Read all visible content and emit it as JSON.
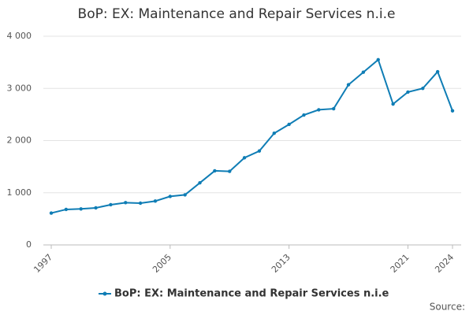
{
  "chart_data": {
    "type": "line",
    "title": "BoP: EX: Maintenance and Repair Services n.i.e",
    "x": [
      1997,
      1998,
      1999,
      2000,
      2001,
      2002,
      2003,
      2004,
      2005,
      2006,
      2007,
      2008,
      2009,
      2010,
      2011,
      2012,
      2013,
      2014,
      2015,
      2016,
      2017,
      2018,
      2019,
      2020,
      2021,
      2022,
      2023,
      2024
    ],
    "series": [
      {
        "name": "BoP: EX: Maintenance and Repair Services n.i.e",
        "color": "#0f7db5",
        "values": [
          610,
          680,
          690,
          710,
          770,
          810,
          800,
          840,
          930,
          960,
          1190,
          1420,
          1410,
          1670,
          1800,
          2140,
          2310,
          2490,
          2590,
          2610,
          3070,
          3310,
          3550,
          2700,
          2930,
          3000,
          3320,
          2570
        ]
      }
    ],
    "xlim": [
      1997,
      2024
    ],
    "xticks": [
      1997,
      2005,
      2013,
      2021,
      2024
    ],
    "ylim": [
      0,
      4000
    ],
    "yticks": [
      0,
      {
        "value": 1000,
        "label": "1 000"
      },
      {
        "value": 2000,
        "label": "2 000"
      },
      {
        "value": 3000,
        "label": "3 000"
      },
      {
        "value": 4000,
        "label": "4 000"
      }
    ],
    "grid": true,
    "source": "Source:"
  }
}
